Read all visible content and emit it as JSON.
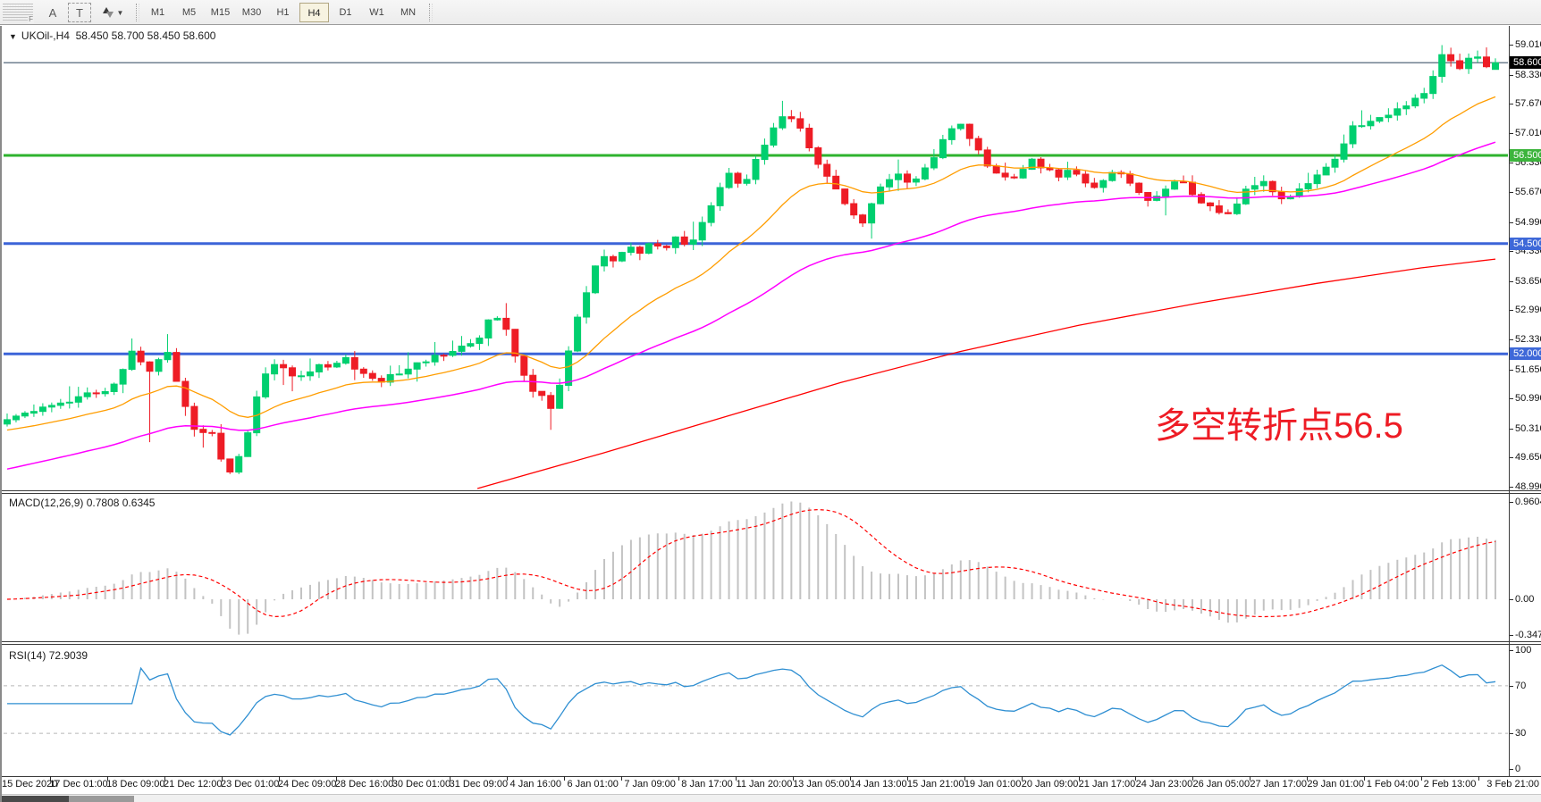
{
  "toolbar": {
    "tools": [
      {
        "name": "text-label",
        "label": "A"
      },
      {
        "name": "text",
        "label": "T"
      }
    ],
    "timeframes": [
      "M1",
      "M5",
      "M15",
      "M30",
      "H1",
      "H4",
      "D1",
      "W1",
      "MN"
    ],
    "active_timeframe": "H4"
  },
  "chart": {
    "title": "UKOil-,H4",
    "ohlc_text": "58.450 58.700 58.450 58.600",
    "annotation": {
      "text": "多空转折点56.5",
      "color": "#ee1c25"
    }
  },
  "macd": {
    "name": "MACD(12,26,9)",
    "values": "0.7808 0.6345",
    "axis": [
      {
        "label": "0.9604",
        "value": 0.9604
      },
      {
        "label": "0.00",
        "value": 0
      },
      {
        "label": "-0.3473",
        "value": -0.3473
      }
    ],
    "histogram_color": "#c3c3c3",
    "signal_color": "#ff0000"
  },
  "rsi": {
    "name": "RSI(14)",
    "value": "72.9039",
    "axis": [
      {
        "label": "100",
        "value": 100
      },
      {
        "label": "70",
        "value": 70
      },
      {
        "label": "30",
        "value": 30
      },
      {
        "label": "0",
        "value": 0
      }
    ],
    "levels": [
      70,
      30
    ],
    "line_color": "#2f8fd2",
    "level_color": "#b8b8b8"
  },
  "time_axis": {
    "labels": [
      "15 Dec 2020",
      "17 Dec 01:00",
      "18 Dec 09:00",
      "21 Dec 12:00",
      "23 Dec 01:00",
      "24 Dec 09:00",
      "28 Dec 16:00",
      "30 Dec 01:00",
      "31 Dec 09:00",
      "4 Jan 16:00",
      "6 Jan 01:00",
      "7 Jan 09:00",
      "8 Jan 17:00",
      "11 Jan 20:00",
      "13 Jan 05:00",
      "14 Jan 13:00",
      "15 Jan 21:00",
      "19 Jan 01:00",
      "20 Jan 09:00",
      "21 Jan 17:00",
      "24 Jan 23:00",
      "26 Jan 05:00",
      "27 Jan 17:00",
      "29 Jan 01:00",
      "1 Feb 04:00",
      "2 Feb 13:00",
      "3 Feb 21:00"
    ]
  },
  "chart_data": {
    "type": "candlestick",
    "symbol": "UKOil-",
    "timeframe": "H4",
    "bar_count": 168,
    "up_color": "#00cf6f",
    "down_color": "#ee1c25",
    "last_bar": {
      "open": 58.45,
      "high": 58.7,
      "low": 58.45,
      "close": 58.6
    },
    "price_axis": {
      "ticks": [
        {
          "label": "59.010",
          "value": 59.01
        },
        {
          "label": "58.330",
          "value": 58.33
        },
        {
          "label": "57.670",
          "value": 57.67
        },
        {
          "label": "57.010",
          "value": 57.01
        },
        {
          "label": "56.330",
          "value": 56.33
        },
        {
          "label": "55.670",
          "value": 55.67
        },
        {
          "label": "54.990",
          "value": 54.99
        },
        {
          "label": "54.330",
          "value": 54.33
        },
        {
          "label": "53.650",
          "value": 53.65
        },
        {
          "label": "52.990",
          "value": 52.99
        },
        {
          "label": "52.330",
          "value": 52.33
        },
        {
          "label": "51.650",
          "value": 51.65
        },
        {
          "label": "50.990",
          "value": 50.99
        },
        {
          "label": "50.310",
          "value": 50.31
        },
        {
          "label": "49.650",
          "value": 49.65
        },
        {
          "label": "48.990",
          "value": 48.99
        }
      ],
      "badges": [
        {
          "label": "58.600",
          "value": 58.6,
          "bg": "#000000"
        },
        {
          "label": "56.500",
          "value": 56.5,
          "bg": "#3cb43c"
        },
        {
          "label": "54.500",
          "value": 54.5,
          "bg": "#3e68d8"
        },
        {
          "label": "52.000",
          "value": 52.0,
          "bg": "#3e68d8"
        }
      ]
    },
    "hlines": [
      {
        "value": 58.6,
        "color": "#708090",
        "width": 1.5,
        "role": "current-price"
      },
      {
        "value": 56.5,
        "color": "#2eb32e",
        "width": 3,
        "role": "pivot-level"
      },
      {
        "value": 54.5,
        "color": "#3c64d8",
        "width": 3,
        "role": "support-level"
      },
      {
        "value": 52.0,
        "color": "#3c64d8",
        "width": 3,
        "role": "support-level"
      }
    ],
    "price_path": [
      [
        0.0,
        50.55
      ],
      [
        0.02,
        50.75
      ],
      [
        0.05,
        51.05
      ],
      [
        0.07,
        51.25
      ],
      [
        0.085,
        52.1
      ],
      [
        0.097,
        51.55
      ],
      [
        0.106,
        52.2
      ],
      [
        0.118,
        50.95
      ],
      [
        0.128,
        50.05
      ],
      [
        0.136,
        50.35
      ],
      [
        0.143,
        49.65
      ],
      [
        0.15,
        49.35
      ],
      [
        0.16,
        49.9
      ],
      [
        0.17,
        51.4
      ],
      [
        0.18,
        51.75
      ],
      [
        0.195,
        51.5
      ],
      [
        0.21,
        51.7
      ],
      [
        0.226,
        51.9
      ],
      [
        0.24,
        51.55
      ],
      [
        0.252,
        51.35
      ],
      [
        0.265,
        51.65
      ],
      [
        0.278,
        51.85
      ],
      [
        0.292,
        51.95
      ],
      [
        0.305,
        52.2
      ],
      [
        0.317,
        52.35
      ],
      [
        0.325,
        52.95
      ],
      [
        0.334,
        52.7
      ],
      [
        0.342,
        51.9
      ],
      [
        0.352,
        51.15
      ],
      [
        0.36,
        51.05
      ],
      [
        0.366,
        50.8
      ],
      [
        0.373,
        51.4
      ],
      [
        0.38,
        52.5
      ],
      [
        0.388,
        53.2
      ],
      [
        0.394,
        53.95
      ],
      [
        0.4,
        54.3
      ],
      [
        0.408,
        54.1
      ],
      [
        0.416,
        54.45
      ],
      [
        0.424,
        54.3
      ],
      [
        0.432,
        54.55
      ],
      [
        0.44,
        54.4
      ],
      [
        0.448,
        54.6
      ],
      [
        0.456,
        54.5
      ],
      [
        0.464,
        54.7
      ],
      [
        0.472,
        55.3
      ],
      [
        0.48,
        55.85
      ],
      [
        0.487,
        56.1
      ],
      [
        0.493,
        55.75
      ],
      [
        0.5,
        56.2
      ],
      [
        0.508,
        56.65
      ],
      [
        0.515,
        57.1
      ],
      [
        0.522,
        57.4
      ],
      [
        0.53,
        57.25
      ],
      [
        0.537,
        56.8
      ],
      [
        0.545,
        56.3
      ],
      [
        0.552,
        55.95
      ],
      [
        0.56,
        55.55
      ],
      [
        0.568,
        55.15
      ],
      [
        0.575,
        54.95
      ],
      [
        0.582,
        55.45
      ],
      [
        0.59,
        55.9
      ],
      [
        0.598,
        56.1
      ],
      [
        0.606,
        55.8
      ],
      [
        0.614,
        56.05
      ],
      [
        0.622,
        56.35
      ],
      [
        0.63,
        56.9
      ],
      [
        0.637,
        57.3
      ],
      [
        0.643,
        57.15
      ],
      [
        0.65,
        56.7
      ],
      [
        0.658,
        56.35
      ],
      [
        0.666,
        56.1
      ],
      [
        0.674,
        55.85
      ],
      [
        0.682,
        56.15
      ],
      [
        0.69,
        56.4
      ],
      [
        0.698,
        56.2
      ],
      [
        0.706,
        55.95
      ],
      [
        0.714,
        56.2
      ],
      [
        0.722,
        55.95
      ],
      [
        0.73,
        55.7
      ],
      [
        0.738,
        55.95
      ],
      [
        0.746,
        56.15
      ],
      [
        0.754,
        55.9
      ],
      [
        0.762,
        55.65
      ],
      [
        0.77,
        55.45
      ],
      [
        0.778,
        55.7
      ],
      [
        0.786,
        55.95
      ],
      [
        0.794,
        55.75
      ],
      [
        0.802,
        55.5
      ],
      [
        0.81,
        55.25
      ],
      [
        0.818,
        55.05
      ],
      [
        0.826,
        55.45
      ],
      [
        0.834,
        55.75
      ],
      [
        0.842,
        55.95
      ],
      [
        0.85,
        55.7
      ],
      [
        0.858,
        55.5
      ],
      [
        0.866,
        55.75
      ],
      [
        0.874,
        55.85
      ],
      [
        0.882,
        56.05
      ],
      [
        0.89,
        56.35
      ],
      [
        0.898,
        56.8
      ],
      [
        0.906,
        57.25
      ],
      [
        0.914,
        57.15
      ],
      [
        0.922,
        57.35
      ],
      [
        0.93,
        57.5
      ],
      [
        0.938,
        57.55
      ],
      [
        0.946,
        57.75
      ],
      [
        0.953,
        57.95
      ],
      [
        0.96,
        58.4
      ],
      [
        0.966,
        58.9
      ],
      [
        0.973,
        58.35
      ],
      [
        0.98,
        58.6
      ],
      [
        0.987,
        58.85
      ],
      [
        0.994,
        58.45
      ],
      [
        1.0,
        58.6
      ]
    ],
    "forced_extremes": [
      {
        "i": 14,
        "high": 52.35
      },
      {
        "i": 16,
        "low": 50.0
      },
      {
        "i": 18,
        "high": 52.45
      },
      {
        "i": 25,
        "low": 49.28
      },
      {
        "i": 61,
        "low": 50.28
      },
      {
        "i": 161,
        "high": 59.0
      }
    ],
    "moving_averages": [
      {
        "name": "ma-fast",
        "color": "#ff9d00",
        "period": 20,
        "seed": 50.25
      },
      {
        "name": "ma-medium",
        "color": "#ff00ff",
        "period": 55,
        "seed": 49.35
      },
      {
        "name": "ma-slow",
        "color": "#ff0000",
        "points": [
          [
            0.316,
            48.95
          ],
          [
            0.4,
            49.75
          ],
          [
            0.48,
            50.55
          ],
          [
            0.56,
            51.35
          ],
          [
            0.64,
            52.05
          ],
          [
            0.72,
            52.65
          ],
          [
            0.8,
            53.15
          ],
          [
            0.88,
            53.6
          ],
          [
            0.95,
            53.95
          ],
          [
            1.0,
            54.15
          ]
        ]
      }
    ]
  }
}
